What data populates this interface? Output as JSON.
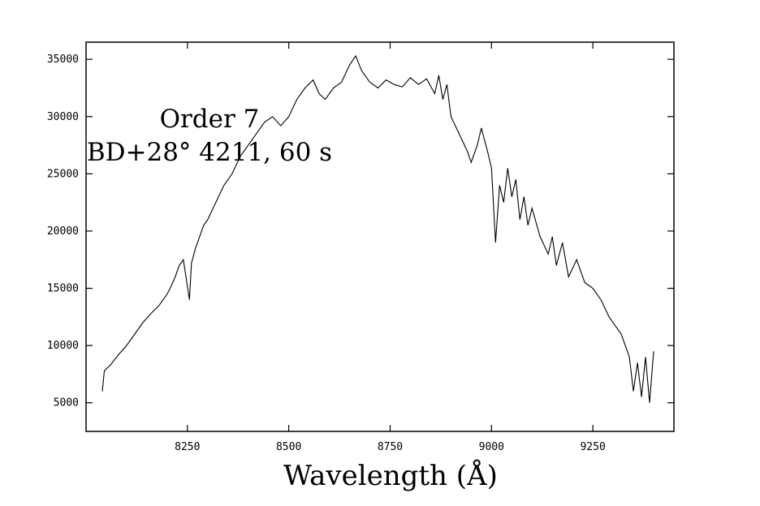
{
  "chart_data": {
    "type": "line",
    "title": "",
    "xlabel": "Wavelength (Å)",
    "ylabel": "",
    "annotations": [
      "Order 7",
      "BD+28° 4211, 60 s"
    ],
    "xlim": [
      8000,
      9450
    ],
    "ylim": [
      2500,
      36500
    ],
    "x_ticks": [
      8250,
      8500,
      8750,
      9000,
      9250
    ],
    "y_ticks": [
      5000,
      10000,
      15000,
      20000,
      25000,
      30000,
      35000
    ],
    "grid": false,
    "legend": "none",
    "line_color": "#000000",
    "series": [
      {
        "x": [
          8040,
          8045,
          8060,
          8080,
          8100,
          8120,
          8140,
          8160,
          8180,
          8200,
          8210,
          8220,
          8230,
          8240,
          8255,
          8260,
          8270,
          8280,
          8290,
          8300,
          8320,
          8340,
          8360,
          8380,
          8400,
          8420,
          8440,
          8460,
          8480,
          8500,
          8520,
          8540,
          8560,
          8575,
          8590,
          8610,
          8630,
          8650,
          8665,
          8680,
          8700,
          8720,
          8740,
          8760,
          8780,
          8800,
          8820,
          8840,
          8860,
          8870,
          8880,
          8890,
          8900,
          8920,
          8940,
          8950,
          8965,
          8975,
          8990,
          9000,
          9010,
          9020,
          9030,
          9040,
          9050,
          9060,
          9070,
          9080,
          9090,
          9100,
          9120,
          9140,
          9150,
          9160,
          9175,
          9190,
          9210,
          9230,
          9250,
          9270,
          9290,
          9300,
          9310,
          9320,
          9330,
          9340,
          9350,
          9360,
          9370,
          9380,
          9390,
          9400
        ],
        "y": [
          6000,
          7800,
          8300,
          9200,
          10000,
          11000,
          12000,
          12800,
          13500,
          14500,
          15200,
          16000,
          17000,
          17500,
          14000,
          17200,
          18500,
          19500,
          20500,
          21000,
          22500,
          24000,
          25000,
          26500,
          27500,
          28500,
          29500,
          30000,
          29200,
          30000,
          31500,
          32500,
          33200,
          32000,
          31500,
          32500,
          33000,
          34500,
          35300,
          34000,
          33000,
          32500,
          33200,
          32800,
          32600,
          33400,
          32800,
          33300,
          32000,
          33600,
          31500,
          32800,
          30000,
          28500,
          27000,
          26000,
          27500,
          29000,
          27000,
          25500,
          19000,
          24000,
          22500,
          25500,
          23000,
          24500,
          21000,
          23000,
          20500,
          22000,
          19500,
          18000,
          19500,
          17000,
          19000,
          16000,
          17500,
          15500,
          15000,
          14000,
          12500,
          12000,
          11500,
          11000,
          10000,
          9000,
          6000,
          8500,
          5500,
          9000,
          5000,
          9500
        ]
      }
    ]
  }
}
